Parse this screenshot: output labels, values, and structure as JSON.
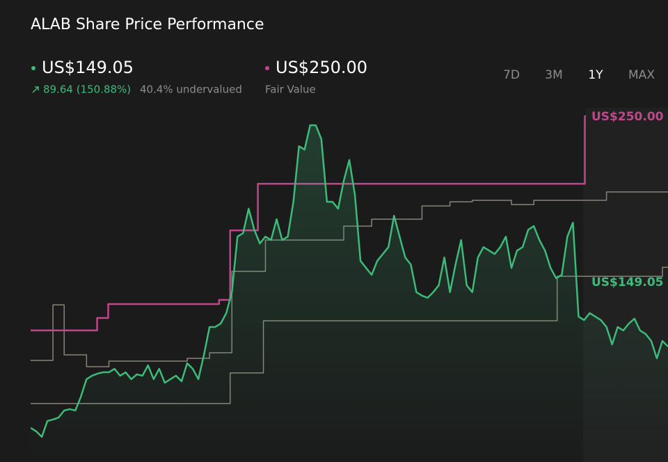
{
  "chart_data": {
    "type": "line",
    "title": "ALAB Share Price Performance",
    "ylim": [
      39.2,
      257.2
    ],
    "series": [
      {
        "color": "#8a8378",
        "step": true,
        "values": [
          101.1,
          101.1,
          101.1,
          101.1,
          135.0,
          135.0,
          104.5,
          104.5,
          104.5,
          104.5,
          97.3,
          97.3,
          97.3,
          97.3,
          100.7,
          100.7,
          100.7,
          100.7,
          100.7,
          100.7,
          100.7,
          100.7,
          100.7,
          100.7,
          100.7,
          100.7,
          100.7,
          100.7,
          102.4,
          102.4,
          102.4,
          102.4,
          105.8,
          105.8,
          105.8,
          105.8,
          155.4,
          155.4,
          155.4,
          155.4,
          155.4,
          155.4,
          174.5,
          174.5,
          174.5,
          174.5,
          174.5,
          174.5,
          174.5,
          174.5,
          174.5,
          174.5,
          174.5,
          174.5,
          174.5,
          174.5,
          183.0,
          183.0,
          183.0,
          183.0,
          183.0,
          187.2,
          187.2,
          187.2,
          187.2,
          187.2,
          187.2,
          187.2,
          187.2,
          187.2,
          195.3,
          195.3,
          195.3,
          195.3,
          195.3,
          197.8,
          197.8,
          197.8,
          197.8,
          198.7,
          198.7,
          198.7,
          198.7,
          198.7,
          198.7,
          198.7,
          196.1,
          196.1,
          196.1,
          196.1,
          198.7,
          198.7,
          198.7,
          198.7,
          198.7,
          198.7,
          198.7,
          198.7,
          198.7,
          198.7,
          198.7,
          198.7,
          198.7,
          203.8,
          203.8,
          203.8,
          203.8,
          203.8,
          203.8,
          203.8,
          203.8,
          203.8,
          203.8,
          203.8,
          203.8
        ]
      },
      {
        "color": "#8a8378",
        "step": true,
        "values": [
          74.8,
          74.8,
          74.8,
          74.8,
          74.8,
          74.8,
          74.8,
          74.8,
          74.8,
          74.8,
          74.8,
          74.8,
          74.8,
          74.8,
          74.8,
          74.8,
          74.8,
          74.8,
          74.8,
          74.8,
          74.8,
          74.8,
          74.8,
          74.8,
          74.8,
          74.8,
          74.8,
          74.8,
          74.8,
          74.8,
          74.8,
          74.8,
          74.8,
          74.8,
          74.8,
          74.8,
          93.5,
          93.5,
          93.5,
          93.5,
          93.5,
          93.5,
          125.3,
          125.3,
          125.3,
          125.3,
          125.3,
          125.3,
          125.3,
          125.3,
          125.3,
          125.3,
          125.3,
          125.3,
          125.3,
          125.3,
          125.3,
          125.3,
          125.3,
          125.3,
          125.3,
          125.3,
          125.3,
          125.3,
          125.3,
          125.3,
          125.3,
          125.3,
          125.3,
          125.3,
          125.3,
          125.3,
          125.3,
          125.3,
          125.3,
          125.3,
          125.3,
          125.3,
          125.3,
          125.3,
          125.3,
          125.3,
          125.3,
          125.3,
          125.3,
          125.3,
          125.3,
          125.3,
          125.3,
          125.3,
          125.3,
          125.3,
          125.3,
          125.3,
          125.3,
          152.4,
          152.4,
          152.4,
          152.4,
          152.4,
          152.4,
          152.4,
          152.4,
          152.4,
          152.4,
          152.4,
          152.4,
          152.4,
          152.4,
          152.4,
          152.4,
          152.4,
          152.4,
          152.4,
          157.9,
          157.9
        ]
      },
      {
        "color": "#c2468b",
        "step": true,
        "values": [
          119.4,
          119.4,
          119.4,
          119.4,
          119.4,
          119.4,
          119.4,
          119.4,
          119.4,
          119.4,
          119.4,
          119.4,
          127.0,
          127.0,
          135.5,
          135.5,
          135.5,
          135.5,
          135.5,
          135.5,
          135.5,
          135.5,
          135.5,
          135.5,
          135.5,
          135.5,
          135.5,
          135.5,
          135.5,
          135.5,
          135.5,
          135.5,
          135.5,
          135.5,
          138.0,
          138.0,
          180.4,
          180.4,
          180.4,
          180.4,
          180.4,
          208.8,
          208.8,
          208.8,
          208.8,
          208.8,
          208.8,
          208.8,
          208.8,
          208.8,
          208.8,
          208.8,
          208.8,
          208.8,
          208.8,
          208.8,
          208.8,
          208.8,
          208.8,
          208.8,
          208.8,
          208.8,
          208.8,
          208.8,
          208.8,
          208.8,
          208.8,
          208.8,
          208.8,
          208.8,
          208.8,
          208.8,
          208.8,
          208.8,
          208.8,
          208.8,
          208.8,
          208.8,
          208.8,
          208.8,
          208.8,
          208.8,
          208.8,
          208.8,
          208.8,
          208.8,
          208.8,
          208.8,
          208.8,
          208.8,
          208.8,
          208.8,
          208.8,
          208.8,
          208.8,
          208.8,
          208.8,
          208.8,
          208.8,
          208.8,
          250,
          250,
          250,
          250,
          250,
          250,
          250,
          250,
          250,
          250,
          250,
          250,
          250,
          250,
          250,
          250
        ]
      },
      {
        "color": "#3dbb7a",
        "area": true,
        "values": [
          60.0,
          57.9,
          54.5,
          64.2,
          65.1,
          66.3,
          70.6,
          71.4,
          70.6,
          79.1,
          89.7,
          91.8,
          93.1,
          93.9,
          93.9,
          96.0,
          91.8,
          93.9,
          89.7,
          92.6,
          91.8,
          98.1,
          89.7,
          96.0,
          87.5,
          89.7,
          91.8,
          88.4,
          99.4,
          96.0,
          89.7,
          104.5,
          121.5,
          121.5,
          123.6,
          130.0,
          142.7,
          176.6,
          178.7,
          193.6,
          180.8,
          172.4,
          176.6,
          174.5,
          187.2,
          174.5,
          176.6,
          197.8,
          231.7,
          229.6,
          244.5,
          244.5,
          236.0,
          197.8,
          197.8,
          193.6,
          210.5,
          223.3,
          202.1,
          161.8,
          157.5,
          153.3,
          161.8,
          166.0,
          170.2,
          189.3,
          176.6,
          163.9,
          159.6,
          142.7,
          140.6,
          139.3,
          142.7,
          146.9,
          163.9,
          142.7,
          159.6,
          174.5,
          146.9,
          142.7,
          163.9,
          170.2,
          168.1,
          166.0,
          170.2,
          176.6,
          157.5,
          168.1,
          170.2,
          180.8,
          183.0,
          174.5,
          168.1,
          157.5,
          151.2,
          153.3,
          176.6,
          185.1,
          127.8,
          125.7,
          130.0,
          127.8,
          125.7,
          121.5,
          110.9,
          121.5,
          119.4,
          123.6,
          126.6,
          119.4,
          117.2,
          113.0,
          102.4,
          113.0,
          109.6
        ]
      }
    ]
  },
  "header": {
    "price": "US$149.05",
    "change": "89.64 (150.88%)",
    "valuation": "40.4% undervalued",
    "fair_value": "US$250.00",
    "fair_value_label": "Fair Value"
  },
  "periods": [
    "7D",
    "3M",
    "1Y",
    "MAX"
  ],
  "active_period": "1Y"
}
